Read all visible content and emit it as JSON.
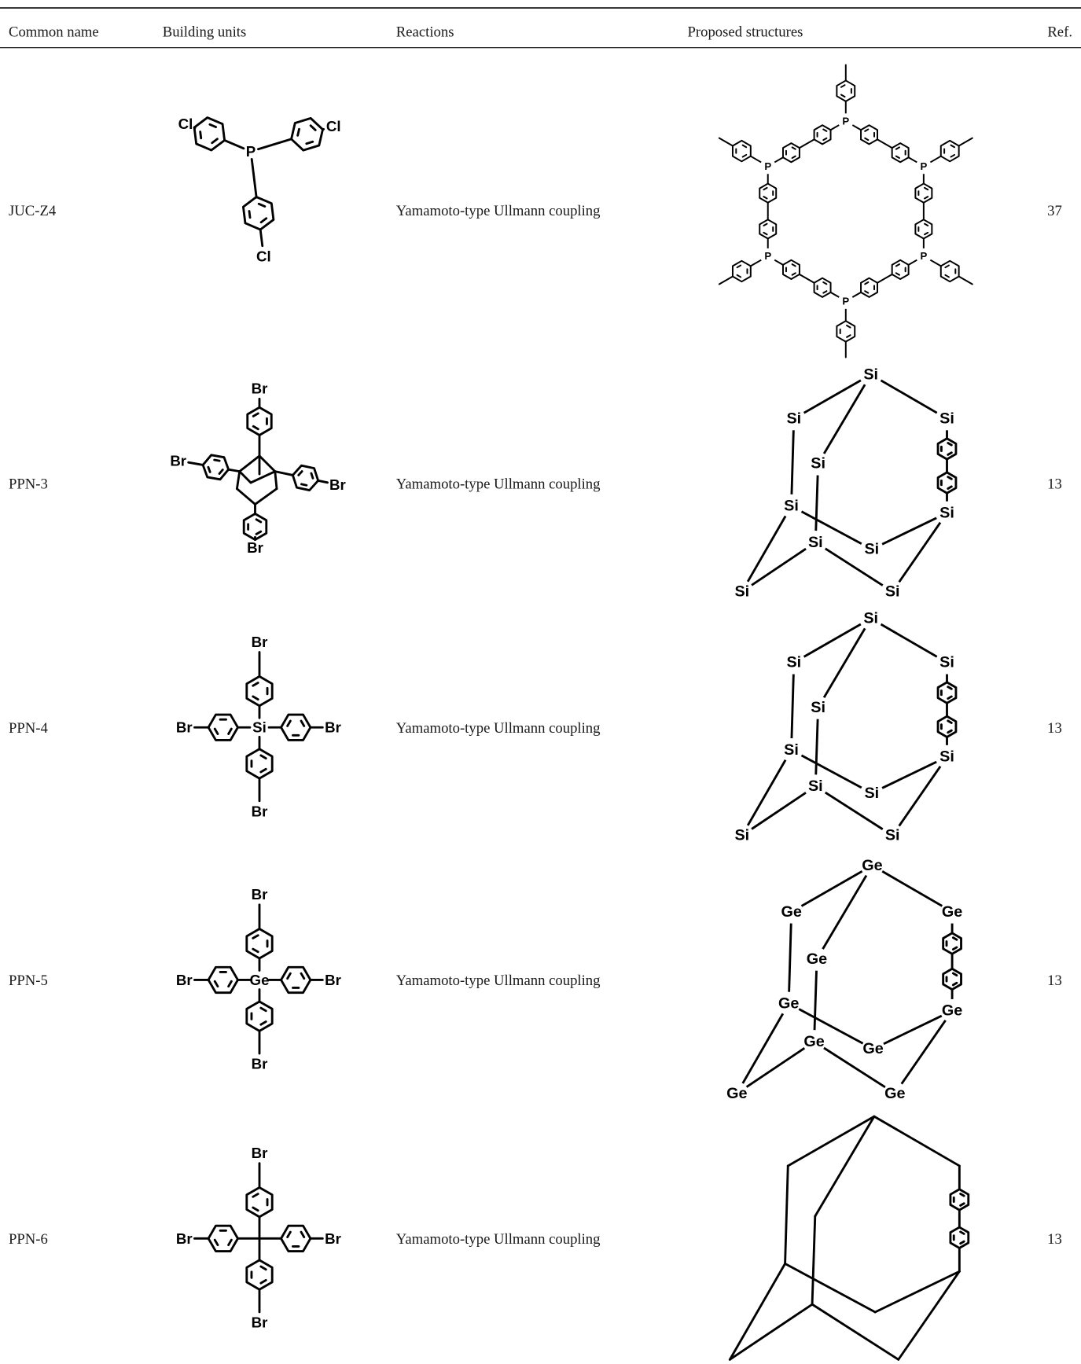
{
  "table": {
    "header": [
      "Common name",
      "Building units",
      "Reactions",
      "Proposed structures",
      "Ref."
    ],
    "rows": [
      {
        "name": "JUC-Z4",
        "building_unit": {
          "core": "P",
          "substituent": "Cl"
        },
        "reaction": "Yamamoto-type Ullmann coupling",
        "structure_node": "P",
        "ref": "37"
      },
      {
        "name": "PPN-3",
        "building_unit": {
          "substituent": "Br"
        },
        "reaction": "Yamamoto-type Ullmann coupling",
        "structure_node": "Si",
        "ref": "13"
      },
      {
        "name": "PPN-4",
        "building_unit": {
          "core": "Si",
          "substituent": "Br"
        },
        "reaction": "Yamamoto-type Ullmann coupling",
        "structure_node": "Si",
        "ref": "13"
      },
      {
        "name": "PPN-5",
        "building_unit": {
          "core": "Ge",
          "substituent": "Br"
        },
        "reaction": "Yamamoto-type Ullmann coupling",
        "structure_node": "Ge",
        "ref": "13"
      },
      {
        "name": "PPN-6",
        "building_unit": {
          "substituent": "Br"
        },
        "reaction": "Yamamoto-type Ullmann coupling",
        "ref": "13"
      }
    ]
  }
}
